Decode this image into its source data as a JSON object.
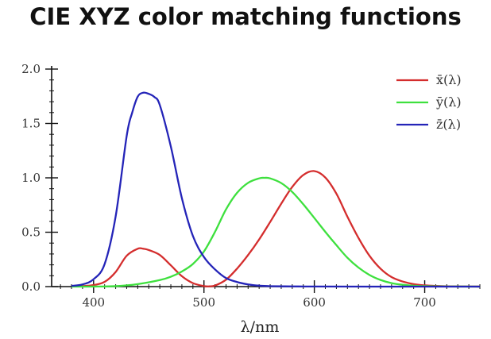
{
  "chart_data": {
    "type": "line",
    "title": "CIE XYZ color matching functions",
    "xlabel": "λ/nm",
    "ylabel": "",
    "xlim": [
      362,
      750
    ],
    "ylim": [
      0,
      2.0
    ],
    "xticks": [
      400,
      500,
      600,
      700
    ],
    "xtick_labels": [
      "400",
      "500",
      "600",
      "700"
    ],
    "yticks": [
      0.0,
      0.5,
      1.0,
      1.5,
      2.0
    ],
    "ytick_labels": [
      "0.0",
      "0.5",
      "1.0",
      "1.5",
      "2.0"
    ],
    "legend_position": "top-right",
    "series": [
      {
        "name": "x̄(λ)",
        "color": "#d42d2d",
        "x": [
          380,
          390,
          400,
          410,
          420,
          430,
          440,
          445,
          450,
          460,
          470,
          480,
          490,
          500,
          505,
          510,
          520,
          530,
          540,
          550,
          560,
          570,
          580,
          590,
          600,
          610,
          620,
          630,
          640,
          650,
          660,
          670,
          680,
          690,
          700,
          710,
          720,
          740,
          750
        ],
        "values": [
          0.0014,
          0.0042,
          0.0143,
          0.0435,
          0.1344,
          0.2839,
          0.3483,
          0.3481,
          0.3362,
          0.2908,
          0.1954,
          0.0956,
          0.032,
          0.0049,
          0.0024,
          0.0093,
          0.0633,
          0.1655,
          0.2904,
          0.4334,
          0.5945,
          0.7621,
          0.9163,
          1.0263,
          1.0622,
          1.0026,
          0.8544,
          0.6424,
          0.4479,
          0.2835,
          0.1649,
          0.0874,
          0.0468,
          0.0227,
          0.0114,
          0.0058,
          0.0029,
          0.0007,
          0.0003
        ]
      },
      {
        "name": "ȳ(λ)",
        "color": "#3ee03e",
        "x": [
          380,
          400,
          420,
          440,
          460,
          470,
          480,
          490,
          500,
          510,
          520,
          530,
          540,
          550,
          555,
          560,
          570,
          580,
          590,
          600,
          610,
          620,
          630,
          640,
          650,
          660,
          670,
          680,
          690,
          700,
          720,
          750
        ],
        "values": [
          0.0,
          0.0004,
          0.004,
          0.023,
          0.06,
          0.091,
          0.139,
          0.208,
          0.323,
          0.503,
          0.71,
          0.862,
          0.954,
          0.995,
          1.0,
          0.995,
          0.952,
          0.87,
          0.757,
          0.631,
          0.503,
          0.381,
          0.265,
          0.175,
          0.107,
          0.061,
          0.032,
          0.017,
          0.0082,
          0.0041,
          0.001,
          0.0001
        ]
      },
      {
        "name": "z̄(λ)",
        "color": "#2424b8",
        "x": [
          380,
          390,
          400,
          410,
          420,
          430,
          435,
          440,
          445,
          450,
          455,
          460,
          470,
          480,
          490,
          500,
          510,
          520,
          530,
          540,
          550,
          560,
          580,
          600,
          650,
          750
        ],
        "values": [
          0.0065,
          0.0201,
          0.0679,
          0.2074,
          0.6456,
          1.3856,
          1.6,
          1.7471,
          1.7826,
          1.7721,
          1.744,
          1.6692,
          1.2876,
          0.813,
          0.4652,
          0.272,
          0.1582,
          0.0782,
          0.0422,
          0.0203,
          0.0087,
          0.0039,
          0.0017,
          0.0008,
          0.0,
          0.0
        ]
      }
    ]
  }
}
